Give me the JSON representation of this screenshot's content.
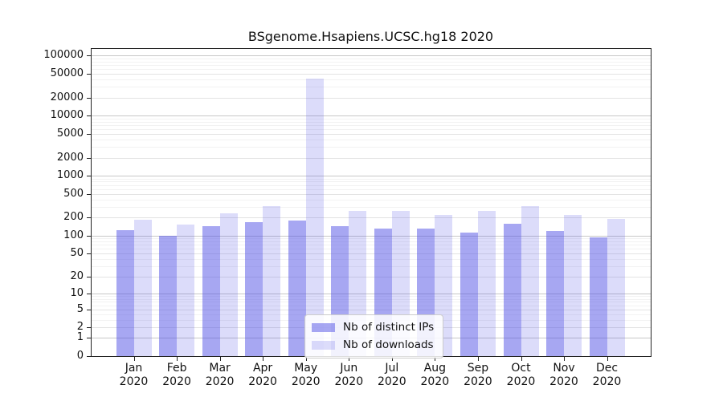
{
  "title": "BSgenome.Hsapiens.UCSC.hg18 2020",
  "legend": {
    "items": [
      {
        "label": "Nb of distinct IPs",
        "color": "rgba(80,80,230,0.5)",
        "color_on_white": "#a8a8f2"
      },
      {
        "label": "Nb of downloads",
        "color": "rgba(80,80,230,0.2)",
        "color_on_white": "#dcdcfa"
      }
    ]
  },
  "chart_data": {
    "type": "bar",
    "title": "BSgenome.Hsapiens.UCSC.hg18 2020",
    "xlabel": "",
    "ylabel": "",
    "year": "2020",
    "categories": [
      "Jan",
      "Feb",
      "Mar",
      "Apr",
      "May",
      "Jun",
      "Jul",
      "Aug",
      "Sep",
      "Oct",
      "Nov",
      "Dec"
    ],
    "series": [
      {
        "name": "Nb of distinct IPs",
        "values": [
          125,
          100,
          146,
          170,
          178,
          143,
          132,
          133,
          112,
          157,
          120,
          93
        ]
      },
      {
        "name": "Nb of downloads",
        "values": [
          183,
          154,
          238,
          315,
          42000,
          262,
          262,
          222,
          262,
          315,
          222,
          189
        ]
      }
    ],
    "colors": [
      "rgba(80,80,230,0.5)",
      "rgba(80,80,230,0.2)"
    ],
    "scale": "log10(1+x)",
    "y_ticks": [
      0,
      1,
      2,
      5,
      10,
      20,
      50,
      100,
      200,
      500,
      1000,
      2000,
      5000,
      10000,
      20000,
      50000,
      100000
    ],
    "ylim": [
      0,
      100000
    ],
    "grid": true,
    "legend_position": "bottom-center"
  }
}
